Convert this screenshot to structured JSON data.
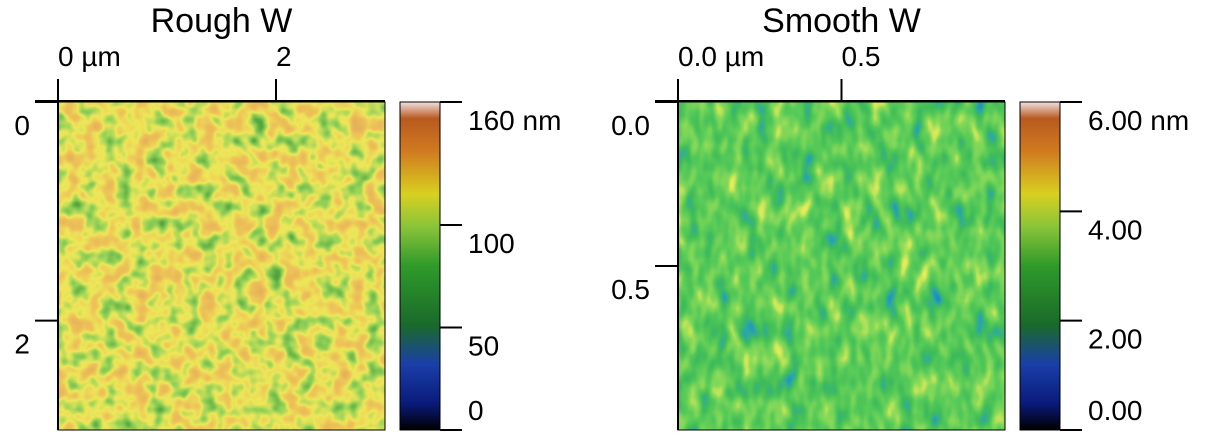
{
  "chart_data": [
    {
      "type": "heatmap",
      "title": "Rough W",
      "xlim": [
        0,
        3
      ],
      "xticks": [
        {
          "value": 0,
          "label": "0 µm"
        },
        2
      ],
      "ylim": [
        0,
        3
      ],
      "yticks": [
        0,
        2
      ],
      "clim": [
        0,
        160
      ],
      "cticks": [
        {
          "value": 160,
          "label": "160 nm"
        },
        100,
        50,
        0
      ]
    },
    {
      "type": "heatmap",
      "title": "Smooth W",
      "xlim": [
        0,
        1
      ],
      "xticks": [
        {
          "value": 0,
          "label": "0.0 µm"
        },
        0.5
      ],
      "ylim": [
        0,
        1
      ],
      "yticks": [
        {
          "value": 0,
          "label": "0.0"
        },
        0.5
      ],
      "clim": [
        0,
        6
      ],
      "cticks": [
        {
          "value": 6,
          "label": "6.00 nm"
        },
        {
          "value": 4,
          "label": "4.00"
        },
        {
          "value": 2,
          "label": "2.00"
        },
        {
          "value": 0,
          "label": "0.00"
        }
      ]
    }
  ]
}
